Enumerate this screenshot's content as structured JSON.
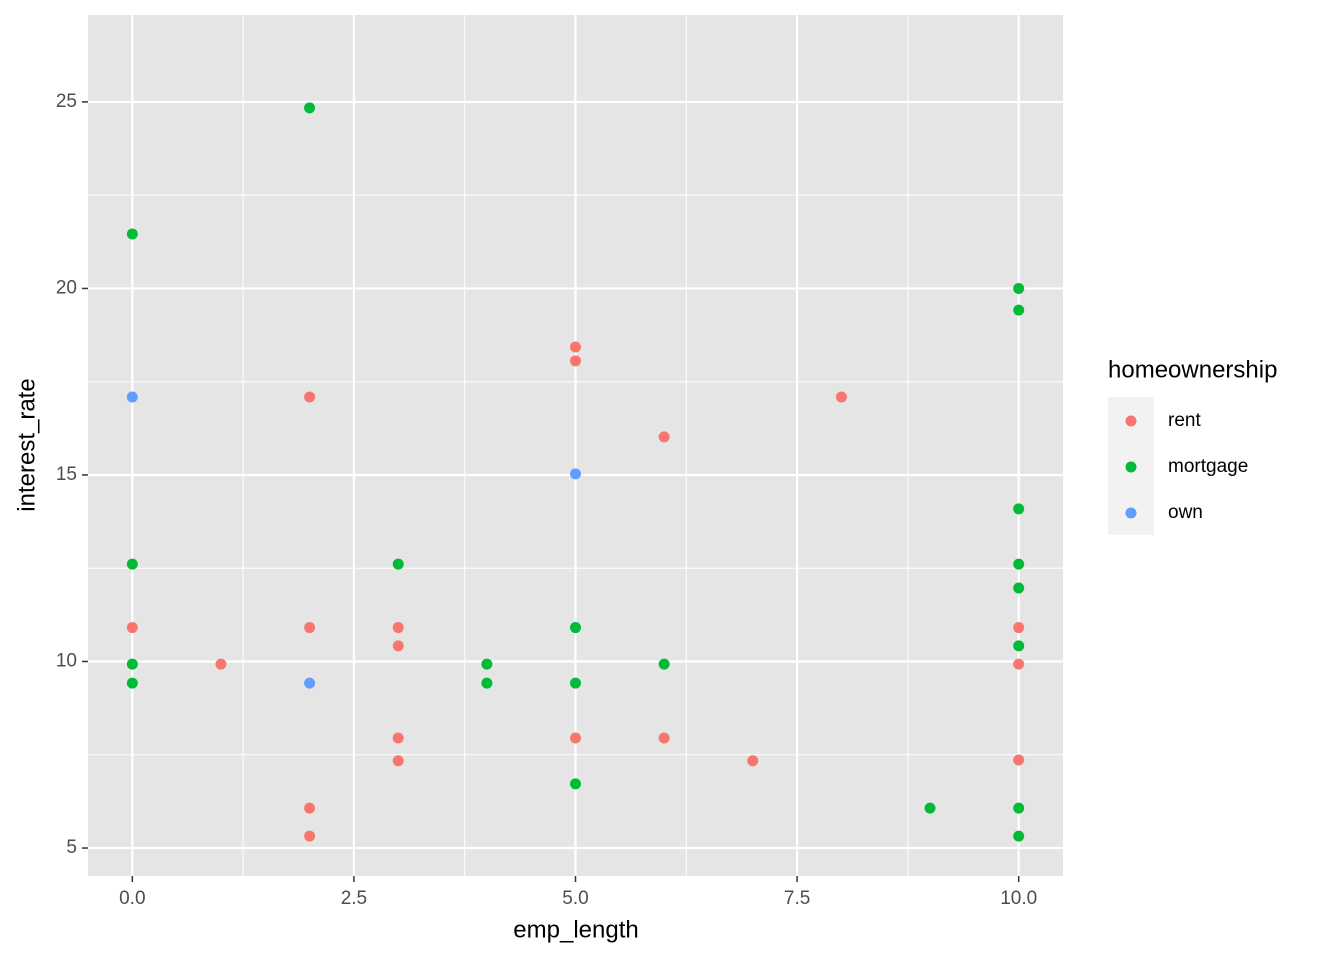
{
  "chart_data": {
    "type": "scatter",
    "x_label": "emp_length",
    "y_label": "interest_rate",
    "legend_title": "homeownership",
    "legend_position": "right",
    "xlim": [
      -0.5,
      10.5
    ],
    "ylim": [
      4.25,
      27.33
    ],
    "xticks": [
      {
        "value": 0,
        "label": "0.0"
      },
      {
        "value": 2.5,
        "label": "2.5"
      },
      {
        "value": 5,
        "label": "5.0"
      },
      {
        "value": 7.5,
        "label": "7.5"
      },
      {
        "value": 10,
        "label": "10.0"
      }
    ],
    "yticks": [
      5,
      10,
      15,
      20,
      25
    ],
    "xminorticks": [
      1.25,
      3.75,
      6.25,
      8.75
    ],
    "yminorticks": [
      7.5,
      12.5,
      17.5,
      22.5
    ],
    "grid": true,
    "series": [
      {
        "name": "rent",
        "color": "#F8766D",
        "x": [
          0,
          1,
          2,
          2,
          2,
          2,
          3,
          3,
          3,
          3,
          5,
          5,
          5,
          6,
          6,
          7,
          8,
          10,
          10,
          10
        ],
        "y": [
          10.91,
          9.93,
          17.09,
          10.91,
          6.07,
          5.32,
          10.91,
          10.42,
          7.95,
          7.34,
          18.43,
          18.06,
          7.95,
          16.02,
          7.95,
          7.34,
          17.09,
          10.91,
          9.93,
          7.36
        ]
      },
      {
        "name": "mortgage",
        "color": "#00BA38",
        "x": [
          0,
          0,
          0,
          0,
          2,
          3,
          4,
          4,
          5,
          5,
          5,
          6,
          9,
          10,
          10,
          10,
          10,
          10,
          10,
          10,
          10
        ],
        "y": [
          21.46,
          12.61,
          9.93,
          9.42,
          24.84,
          12.61,
          9.93,
          9.42,
          10.91,
          9.42,
          6.72,
          9.93,
          6.07,
          20.0,
          19.42,
          14.09,
          12.61,
          11.97,
          10.42,
          6.07,
          5.32
        ]
      },
      {
        "name": "own",
        "color": "#619CFF",
        "x": [
          0,
          2,
          5
        ],
        "y": [
          17.09,
          9.42,
          15.03
        ]
      }
    ]
  }
}
